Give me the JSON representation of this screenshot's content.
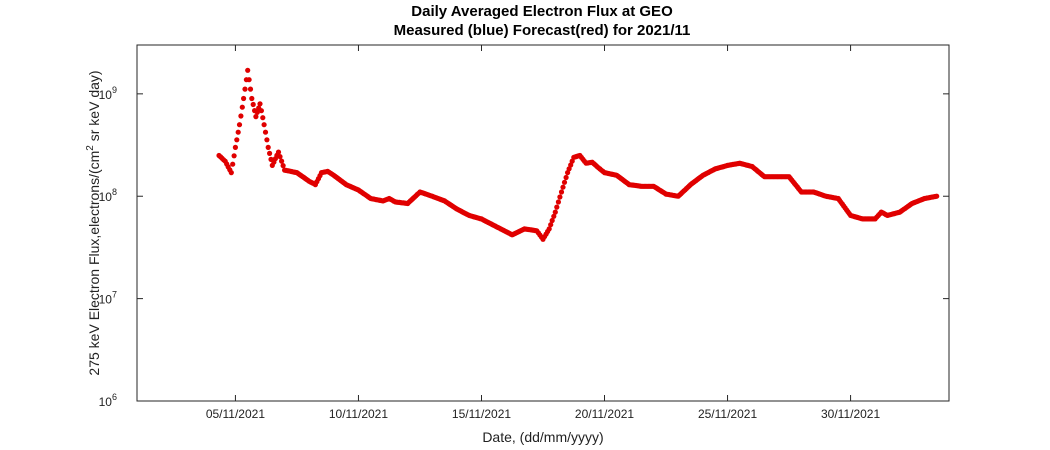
{
  "chart_data": {
    "type": "scatter",
    "title": "Daily Averaged Electron Flux at GEO",
    "subtitle": "Measured (blue) Forecast(red) for 2021/11",
    "xlabel": "Date, (dd/mm/yyyy)",
    "ylabel": {
      "pre": "275 keV Electron Flux,electrons/(cm",
      "sup": "2",
      "post": " sr keV day)"
    },
    "yscale": "log",
    "ylim": [
      1000000,
      3000000000
    ],
    "xlim": [
      "2021-11-01",
      "2021-12-04"
    ],
    "xticks": [
      {
        "date": "2021-11-05",
        "label": "05/11/2021"
      },
      {
        "date": "2021-11-10",
        "label": "10/11/2021"
      },
      {
        "date": "2021-11-15",
        "label": "15/11/2021"
      },
      {
        "date": "2021-11-20",
        "label": "20/11/2021"
      },
      {
        "date": "2021-11-25",
        "label": "25/11/2021"
      },
      {
        "date": "2021-11-30",
        "label": "30/11/2021"
      }
    ],
    "yticks": [
      {
        "value": 1000000,
        "base": "10",
        "exp": "6"
      },
      {
        "value": 10000000,
        "base": "10",
        "exp": "7"
      },
      {
        "value": 100000000,
        "base": "10",
        "exp": "8"
      },
      {
        "value": 1000000000,
        "base": "10",
        "exp": "9"
      }
    ],
    "grid": false,
    "series": [
      {
        "color": "#e00000",
        "points": [
          [
            "2021-11-04 08:00",
            250000000
          ],
          [
            "2021-11-04 14:00",
            220000000
          ],
          [
            "2021-11-04 20:00",
            170000000
          ],
          [
            "2021-11-05 00:00",
            300000000
          ],
          [
            "2021-11-05 04:00",
            500000000
          ],
          [
            "2021-11-05 08:00",
            900000000
          ],
          [
            "2021-11-05 12:00",
            1700000000
          ],
          [
            "2021-11-05 16:00",
            900000000
          ],
          [
            "2021-11-05 20:00",
            600000000
          ],
          [
            "2021-11-06 00:00",
            800000000
          ],
          [
            "2021-11-06 04:00",
            500000000
          ],
          [
            "2021-11-06 08:00",
            300000000
          ],
          [
            "2021-11-06 12:00",
            200000000
          ],
          [
            "2021-11-06 18:00",
            270000000
          ],
          [
            "2021-11-07 00:00",
            180000000
          ],
          [
            "2021-11-07 12:00",
            170000000
          ],
          [
            "2021-11-08 00:00",
            140000000
          ],
          [
            "2021-11-08 06:00",
            130000000
          ],
          [
            "2021-11-08 12:00",
            170000000
          ],
          [
            "2021-11-08 18:00",
            175000000
          ],
          [
            "2021-11-09 00:00",
            160000000
          ],
          [
            "2021-11-09 12:00",
            130000000
          ],
          [
            "2021-11-10 00:00",
            115000000
          ],
          [
            "2021-11-10 12:00",
            95000000
          ],
          [
            "2021-11-11 00:00",
            90000000
          ],
          [
            "2021-11-11 06:00",
            95000000
          ],
          [
            "2021-11-11 12:00",
            88000000
          ],
          [
            "2021-11-12 00:00",
            85000000
          ],
          [
            "2021-11-12 12:00",
            110000000
          ],
          [
            "2021-11-13 00:00",
            100000000
          ],
          [
            "2021-11-13 12:00",
            90000000
          ],
          [
            "2021-11-14 00:00",
            75000000
          ],
          [
            "2021-11-14 12:00",
            65000000
          ],
          [
            "2021-11-15 00:00",
            60000000
          ],
          [
            "2021-11-15 12:00",
            52000000
          ],
          [
            "2021-11-16 06:00",
            42000000
          ],
          [
            "2021-11-16 18:00",
            48000000
          ],
          [
            "2021-11-17 06:00",
            46000000
          ],
          [
            "2021-11-17 12:00",
            38000000
          ],
          [
            "2021-11-17 18:00",
            48000000
          ],
          [
            "2021-11-18 00:00",
            70000000
          ],
          [
            "2021-11-18 06:00",
            110000000
          ],
          [
            "2021-11-18 12:00",
            170000000
          ],
          [
            "2021-11-18 18:00",
            240000000
          ],
          [
            "2021-11-19 00:00",
            250000000
          ],
          [
            "2021-11-19 06:00",
            210000000
          ],
          [
            "2021-11-19 12:00",
            215000000
          ],
          [
            "2021-11-19 18:00",
            190000000
          ],
          [
            "2021-11-20 00:00",
            170000000
          ],
          [
            "2021-11-20 12:00",
            160000000
          ],
          [
            "2021-11-21 00:00",
            130000000
          ],
          [
            "2021-11-21 12:00",
            125000000
          ],
          [
            "2021-11-22 00:00",
            125000000
          ],
          [
            "2021-11-22 12:00",
            105000000
          ],
          [
            "2021-11-23 00:00",
            100000000
          ],
          [
            "2021-11-23 12:00",
            130000000
          ],
          [
            "2021-11-24 00:00",
            160000000
          ],
          [
            "2021-11-24 12:00",
            185000000
          ],
          [
            "2021-11-25 00:00",
            200000000
          ],
          [
            "2021-11-25 12:00",
            210000000
          ],
          [
            "2021-11-26 00:00",
            195000000
          ],
          [
            "2021-11-26 12:00",
            155000000
          ],
          [
            "2021-11-27 00:00",
            155000000
          ],
          [
            "2021-11-27 12:00",
            155000000
          ],
          [
            "2021-11-28 00:00",
            110000000
          ],
          [
            "2021-11-28 12:00",
            110000000
          ],
          [
            "2021-11-29 00:00",
            100000000
          ],
          [
            "2021-11-29 12:00",
            95000000
          ],
          [
            "2021-11-30 00:00",
            65000000
          ],
          [
            "2021-11-30 12:00",
            60000000
          ],
          [
            "2021-12-01 00:00",
            60000000
          ],
          [
            "2021-12-01 06:00",
            70000000
          ],
          [
            "2021-12-01 12:00",
            65000000
          ],
          [
            "2021-12-02 00:00",
            70000000
          ],
          [
            "2021-12-02 12:00",
            85000000
          ],
          [
            "2021-12-03 00:00",
            95000000
          ],
          [
            "2021-12-03 12:00",
            100000000
          ]
        ]
      }
    ]
  }
}
